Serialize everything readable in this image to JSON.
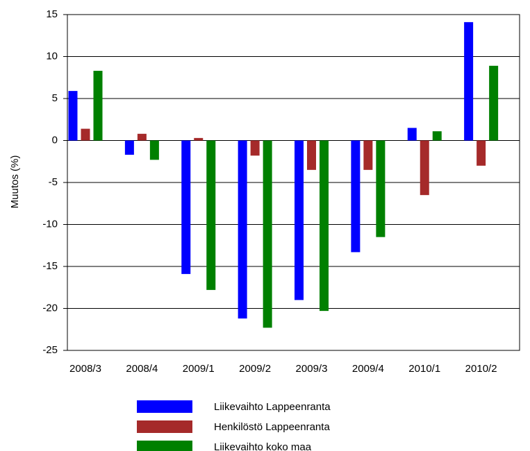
{
  "chart_data": {
    "type": "bar",
    "y_label": "Muutos (%)",
    "categories": [
      "2008/3",
      "2008/4",
      "2009/1",
      "2009/2",
      "2009/3",
      "2009/4",
      "2010/1",
      "2010/2"
    ],
    "series": [
      {
        "name": "Liikevaihto Lappeenranta",
        "color": "#0000ff",
        "values": [
          5.9,
          -1.7,
          -15.9,
          -21.2,
          -19.0,
          -13.3,
          1.5,
          14.1
        ]
      },
      {
        "name": "Henkilöstö Lappeenranta",
        "color": "#a52a2a",
        "values": [
          1.4,
          0.8,
          0.3,
          -1.8,
          -3.5,
          -3.5,
          -6.5,
          -3.0
        ]
      },
      {
        "name": "Liikevaihto koko maa",
        "color": "#008000",
        "values": [
          8.3,
          -2.3,
          -17.8,
          -22.3,
          -20.3,
          -11.5,
          1.1,
          8.9
        ]
      }
    ],
    "ylim": [
      -25,
      15
    ],
    "yticks": [
      -25,
      -20,
      -15,
      -10,
      -5,
      0,
      5,
      10,
      15
    ],
    "grid": true
  }
}
